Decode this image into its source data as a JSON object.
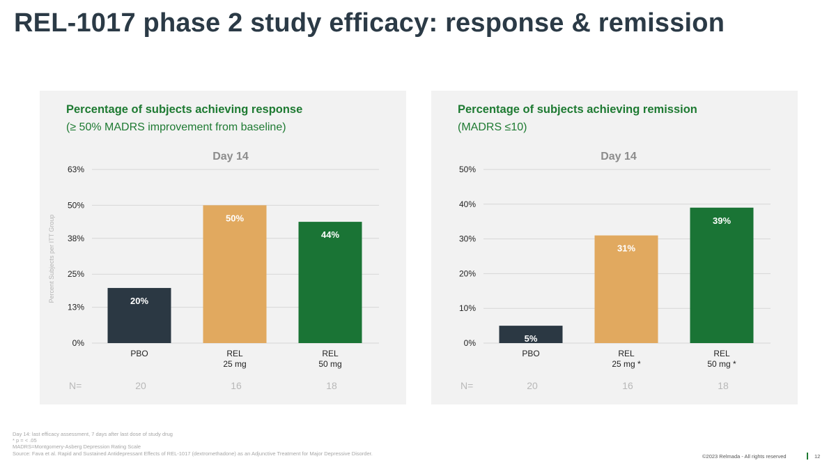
{
  "title": "REL-1017 phase 2 study efficacy: response & remission",
  "colors": {
    "pbo": "#2b3843",
    "rel25": "#e1a95f",
    "rel50": "#1a7435",
    "accent": "#1e7a32"
  },
  "chart_data": [
    {
      "type": "bar",
      "title": "Percentage of subjects achieving response",
      "subtitle": "(≥ 50% MADRS improvement from baseline)",
      "day_label": "Day 14",
      "ylabel": "Percent Subjects per ITT Group",
      "ylim": [
        0,
        63
      ],
      "yticks": [
        0,
        13,
        25,
        38,
        50,
        63
      ],
      "ytick_labels": [
        "0%",
        "13%",
        "25%",
        "38%",
        "50%",
        "63%"
      ],
      "categories": [
        [
          "PBO"
        ],
        [
          "REL",
          "25 mg"
        ],
        [
          "REL",
          "50 mg"
        ]
      ],
      "values": [
        20,
        50,
        44
      ],
      "data_labels": [
        "20%",
        "50%",
        "44%"
      ],
      "n_label": "N=",
      "n_values": [
        "20",
        "16",
        "18"
      ]
    },
    {
      "type": "bar",
      "title": "Percentage of subjects achieving remission",
      "subtitle": "(MADRS ≤10)",
      "day_label": "Day 14",
      "ylabel": "",
      "ylim": [
        0,
        50
      ],
      "yticks": [
        0,
        10,
        20,
        30,
        40,
        50
      ],
      "ytick_labels": [
        "0%",
        "10%",
        "20%",
        "30%",
        "40%",
        "50%"
      ],
      "categories": [
        [
          "PBO"
        ],
        [
          "REL",
          "25 mg *"
        ],
        [
          "REL",
          "50 mg *"
        ]
      ],
      "values": [
        5,
        31,
        39
      ],
      "data_labels": [
        "5%",
        "31%",
        "39%"
      ],
      "n_label": "N=",
      "n_values": [
        "20",
        "16",
        "18"
      ]
    }
  ],
  "footnotes": [
    "Day 14: last efficacy assessment, 7 days after last dose of study drug",
    "* p = < .05",
    "MADRS=Montgomery-Asberg Depression Rating Scale",
    "Source:  Fava et al. Rapid and Sustained Antidepressant Effects of REL-1017 (dextromethadone) as an Adjunctive Treatment for Major Depressive Disorder."
  ],
  "copyright": "©2023 Relmada - All rights reserved",
  "page_number": "12"
}
